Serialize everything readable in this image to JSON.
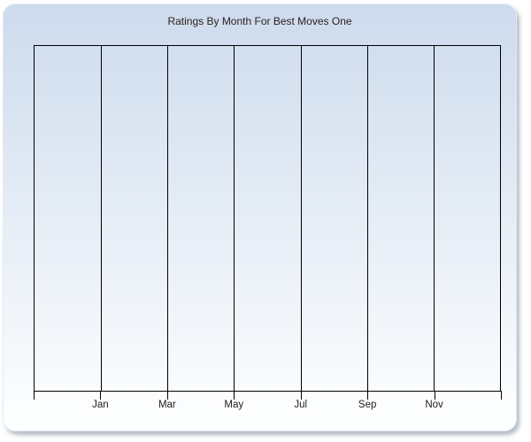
{
  "chart_data": {
    "type": "line",
    "title": "Ratings By Month For Best Moves One",
    "xlabel": "",
    "ylabel": "",
    "x_tick_labels": [
      "Jan",
      "Mar",
      "May",
      "Jul",
      "Sep",
      "Nov"
    ],
    "y_tick_labels": [],
    "series": [],
    "legend": "none",
    "grid": "vertical gridlines only; plot area outlined in black; no horizontal gridlines",
    "layout": "x ticks every 2 months; plot width divided into 7 equal segments; tick marks extend below axis at every segment boundary including both edges",
    "notes": "plot area is empty - no data points rendered"
  },
  "colors": {
    "page_background": "#ffffff",
    "panel_gradient_top": "#cddbed",
    "panel_gradient_bottom": "#feffff",
    "panel_border": "#e3ebf6",
    "axis_line": "#000000",
    "gridline": "#000000",
    "title_text": "#2b1d18",
    "tick_label_text": "#1c1c1c"
  }
}
